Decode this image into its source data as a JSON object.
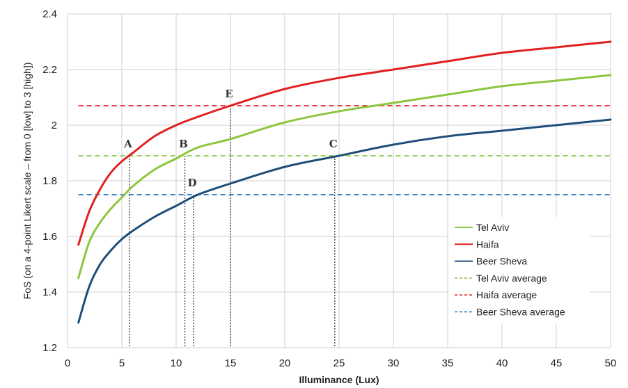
{
  "chart_data": {
    "type": "line",
    "title": "",
    "xlabel": "Illuminance (Lux)",
    "ylabel": "FoS (on a 4-point Likert scale – from 0 [low] to 3 [high])",
    "xlim": [
      0,
      50
    ],
    "ylim": [
      1.2,
      2.4
    ],
    "x_ticks": [
      "0",
      "5",
      "10",
      "15",
      "20",
      "25",
      "30",
      "35",
      "40",
      "45",
      "50"
    ],
    "y_ticks": [
      "1.2",
      "1.4",
      "1.6",
      "1.8",
      "2",
      "2.2",
      "2.4"
    ],
    "grid": true,
    "legend_position": "bottom-right",
    "x": [
      1,
      2,
      3,
      4,
      5,
      6,
      8,
      10,
      12,
      15,
      20,
      25,
      30,
      35,
      40,
      45,
      50
    ],
    "series": [
      {
        "name": "Tel Aviv",
        "color": "#8cc63f",
        "style": "solid",
        "values": [
          1.45,
          1.58,
          1.65,
          1.7,
          1.74,
          1.78,
          1.84,
          1.88,
          1.92,
          1.95,
          2.01,
          2.05,
          2.08,
          2.11,
          2.14,
          2.16,
          2.18
        ]
      },
      {
        "name": "Haifa",
        "color": "#e02020",
        "style": "solid",
        "values": [
          1.57,
          1.69,
          1.77,
          1.83,
          1.87,
          1.9,
          1.96,
          2.0,
          2.03,
          2.07,
          2.13,
          2.17,
          2.2,
          2.23,
          2.26,
          2.28,
          2.3
        ]
      },
      {
        "name": "Beer Sheva",
        "color": "#1f4e79",
        "style": "solid",
        "values": [
          1.29,
          1.42,
          1.5,
          1.55,
          1.59,
          1.62,
          1.67,
          1.71,
          1.75,
          1.79,
          1.85,
          1.89,
          1.93,
          1.96,
          1.98,
          2.0,
          2.02
        ]
      },
      {
        "name": "Tel Aviv average",
        "color": "#8cc63f",
        "style": "dashed",
        "constant": 1.89
      },
      {
        "name": "Haifa average",
        "color": "#e02020",
        "style": "dashed",
        "constant": 2.07
      },
      {
        "name": "Beer Sheva average",
        "color": "#1f78c8",
        "style": "dashed",
        "constant": 1.75
      }
    ],
    "annotations": [
      {
        "label": "A",
        "x": 5.7,
        "y": 1.89
      },
      {
        "label": "B",
        "x": 10.8,
        "y": 1.89
      },
      {
        "label": "C",
        "x": 24.6,
        "y": 1.89
      },
      {
        "label": "D",
        "x": 11.6,
        "y": 1.75
      },
      {
        "label": "E",
        "x": 15,
        "y": 2.07
      }
    ]
  }
}
